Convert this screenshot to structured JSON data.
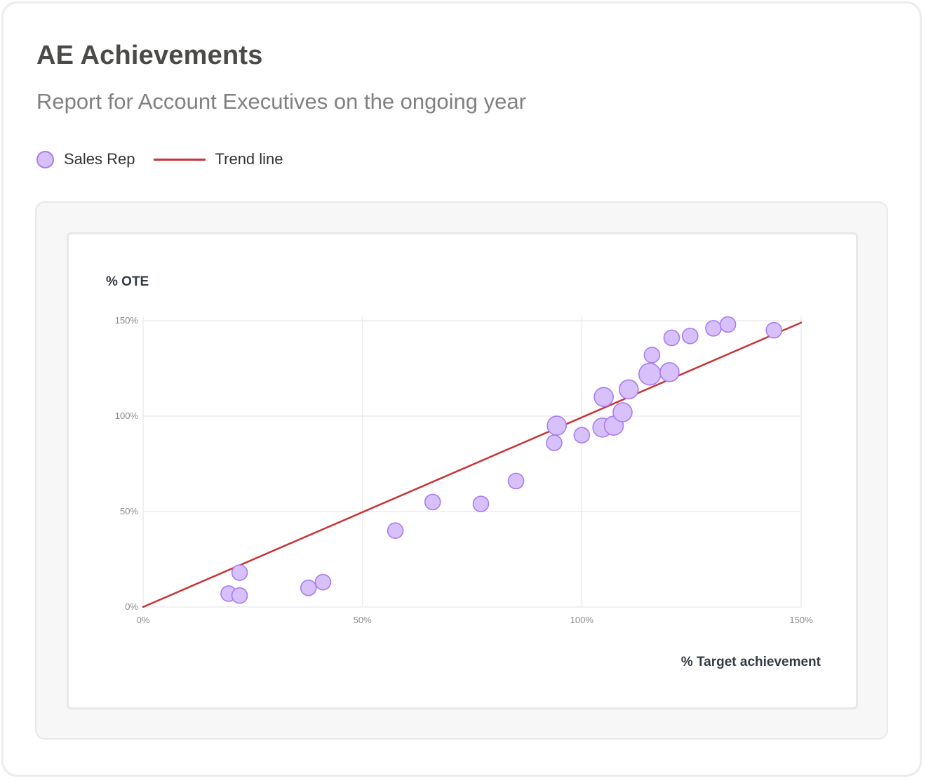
{
  "title": "AE Achievements",
  "subtitle": "Report for Account Executives on the ongoing year",
  "legend": {
    "sales_rep": "Sales Rep",
    "trend_line": "Trend line"
  },
  "colors": {
    "point_fill": "#d8c0fb",
    "point_stroke": "#a77cf2",
    "trend": "#c83434",
    "grid": "#ececec"
  },
  "chart_data": {
    "type": "scatter",
    "xlabel": "% Target achievement",
    "ylabel": "% OTE",
    "xlim": [
      0,
      150
    ],
    "ylim": [
      0,
      150
    ],
    "x_ticks": [
      "0%",
      "50%",
      "100%",
      "150%"
    ],
    "y_ticks": [
      "0%",
      "50%",
      "100%",
      "150%"
    ],
    "grid": true,
    "legend_position": "top-left",
    "trend_line": {
      "x": [
        0,
        150
      ],
      "y": [
        0,
        149
      ]
    },
    "series": [
      {
        "name": "Sales Rep",
        "points": [
          {
            "x": 19.5,
            "y": 7,
            "size": 1
          },
          {
            "x": 22,
            "y": 6,
            "size": 1
          },
          {
            "x": 22,
            "y": 18,
            "size": 1
          },
          {
            "x": 37.7,
            "y": 10,
            "size": 1
          },
          {
            "x": 41,
            "y": 13,
            "size": 1
          },
          {
            "x": 57.5,
            "y": 40,
            "size": 1
          },
          {
            "x": 66,
            "y": 55,
            "size": 1
          },
          {
            "x": 77,
            "y": 54,
            "size": 1
          },
          {
            "x": 85,
            "y": 66,
            "size": 1
          },
          {
            "x": 93.7,
            "y": 86,
            "size": 1
          },
          {
            "x": 94.3,
            "y": 95,
            "size": 2
          },
          {
            "x": 100,
            "y": 90,
            "size": 1
          },
          {
            "x": 104.7,
            "y": 94,
            "size": 2
          },
          {
            "x": 105,
            "y": 110,
            "size": 2
          },
          {
            "x": 107.3,
            "y": 95,
            "size": 2
          },
          {
            "x": 109.3,
            "y": 102,
            "size": 2
          },
          {
            "x": 110.7,
            "y": 114,
            "size": 2
          },
          {
            "x": 115.5,
            "y": 122,
            "size": 3
          },
          {
            "x": 116,
            "y": 132,
            "size": 1
          },
          {
            "x": 120,
            "y": 123,
            "size": 2
          },
          {
            "x": 120.5,
            "y": 141,
            "size": 1
          },
          {
            "x": 124.7,
            "y": 142,
            "size": 1
          },
          {
            "x": 130,
            "y": 146,
            "size": 1
          },
          {
            "x": 133.3,
            "y": 148,
            "size": 1
          },
          {
            "x": 143.8,
            "y": 145,
            "size": 1
          }
        ]
      }
    ]
  }
}
